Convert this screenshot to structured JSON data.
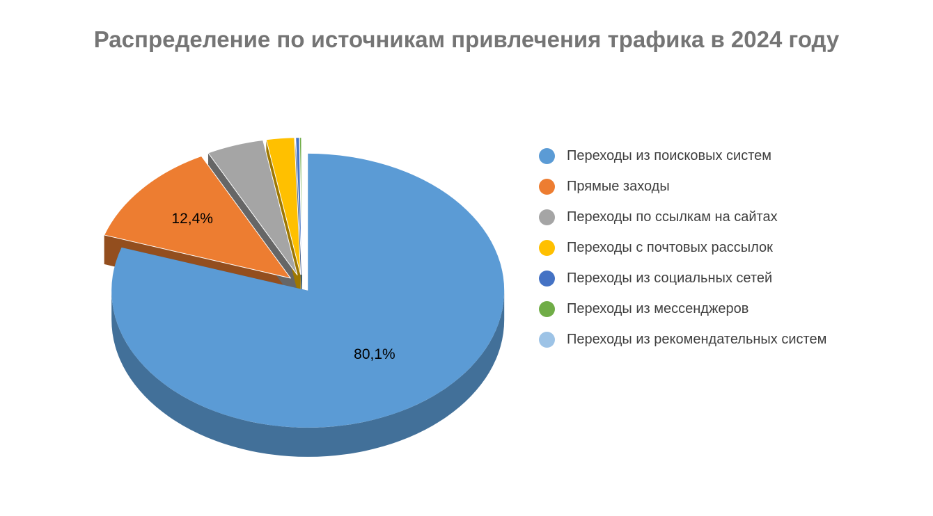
{
  "chart_data": {
    "type": "pie",
    "title": "Распределение по источникам привлечения трафика в 2024 году",
    "three_d": true,
    "exploded": true,
    "legend_position": "right",
    "slices": [
      {
        "name": "Переходы из поисковых систем",
        "value": 80.1,
        "color": "#5B9BD5",
        "label": "80,1%"
      },
      {
        "name": "Прямые заходы",
        "value": 12.4,
        "color": "#ED7D31",
        "label": "12,4%"
      },
      {
        "name": "Переходы по ссылкам на сайтах",
        "value": 4.7,
        "color": "#A5A5A5",
        "label": ""
      },
      {
        "name": "Переходы с почтовых рассылок",
        "value": 2.3,
        "color": "#FFC000",
        "label": ""
      },
      {
        "name": "Переходы из социальных сетей",
        "value": 0.3,
        "color": "#4472C4",
        "label": ""
      },
      {
        "name": "Переходы из мессенджеров",
        "value": 0.15,
        "color": "#70AD47",
        "label": ""
      },
      {
        "name": "Переходы из рекомендательных систем",
        "value": 0.05,
        "color": "#9DC3E6",
        "label": ""
      }
    ]
  }
}
